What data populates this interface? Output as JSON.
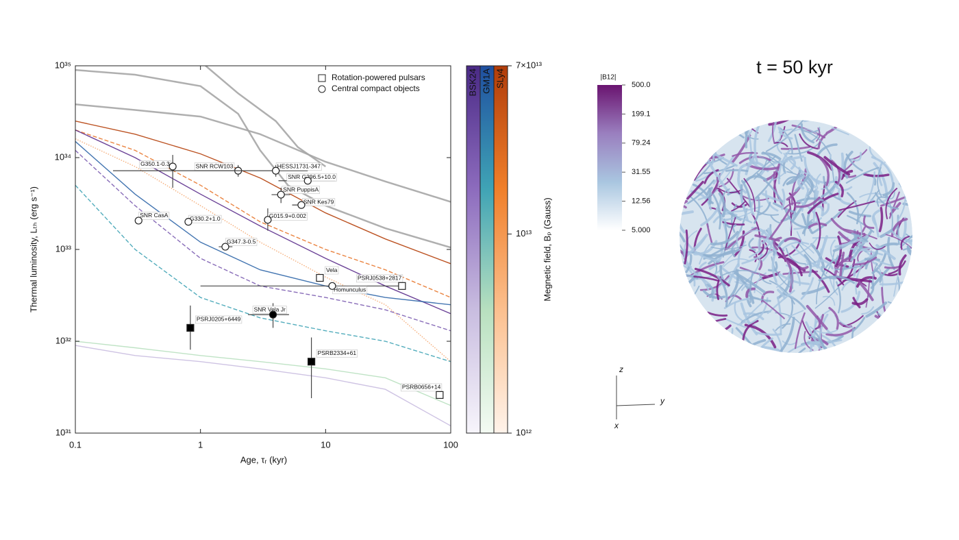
{
  "chart_data": {
    "type": "log-log-line",
    "xlabel": "Age, τᵣ (kyr)",
    "ylabel": "Thermal luminosity, Lₜₕ (erg s⁻¹)",
    "xlog": true,
    "ylog": true,
    "xlim": [
      0.1,
      100
    ],
    "ylim": [
      1e+31,
      1e+35
    ],
    "xticks": [
      0.1,
      1,
      10,
      100
    ],
    "yticks": [
      {
        "value": 1e+31,
        "label": "10³¹"
      },
      {
        "value": 1e+32,
        "label": "10³²"
      },
      {
        "value": 1e+33,
        "label": "10³³"
      },
      {
        "value": 1e+34,
        "label": "10³⁴"
      },
      {
        "value": 1e+35,
        "label": "10³⁵"
      }
    ],
    "legend": "upper right",
    "curves": [
      {
        "color": "#a6a6a6",
        "linestyle": "solid",
        "x": [
          0.1,
          0.3,
          1,
          2,
          3,
          5,
          10,
          30,
          100
        ],
        "values": [
          9e+34,
          8e+34,
          6e+34,
          3e+34,
          1.2e+34,
          5e+33,
          3e+33,
          1.7e+33,
          1.05e+33
        ]
      },
      {
        "color": "#a6a6a6",
        "linestyle": "solid",
        "x": [
          0.1,
          0.3,
          1,
          3,
          10,
          30,
          100
        ],
        "values": [
          3.8e+34,
          3.3e+34,
          2.8e+34,
          1.8e+34,
          9e+33,
          5.5e+33,
          3.3e+33
        ]
      },
      {
        "color": "#a6a6a6",
        "linestyle": "solid",
        "x": [
          1.1,
          2,
          4,
          6,
          10
        ],
        "values": [
          1e+35,
          5e+34,
          2.5e+34,
          1.3e+34,
          8e+33
        ]
      },
      {
        "color": "#b5400b",
        "linestyle": "solid",
        "x": [
          0.1,
          0.3,
          1,
          3,
          10,
          30,
          100
        ],
        "values": [
          2.5e+34,
          1.8e+34,
          1.1e+34,
          6e+33,
          2.5e+33,
          1.3e+33,
          7e+32
        ]
      },
      {
        "color": "#e8772c",
        "linestyle": "dashed",
        "x": [
          0.1,
          0.3,
          1,
          3,
          10,
          30,
          100
        ],
        "values": [
          2e+34,
          1.2e+34,
          5e+33,
          2e+33,
          1e+33,
          6e+32,
          3e+32
        ]
      },
      {
        "color": "#f5a56b",
        "linestyle": "dotted",
        "x": [
          0.1,
          0.3,
          1,
          3,
          10,
          30,
          100
        ],
        "values": [
          1.6e+34,
          8e+33,
          3e+33,
          1.2e+33,
          5e+32,
          2.5e+32,
          6e+31
        ]
      },
      {
        "color": "#5b2d8c",
        "linestyle": "solid",
        "x": [
          0.1,
          0.3,
          1,
          3,
          10,
          30,
          100
        ],
        "values": [
          2e+34,
          1e+34,
          4e+33,
          1.8e+33,
          8e+32,
          4e+32,
          2e+32
        ]
      },
      {
        "color": "#7b5cb0",
        "linestyle": "dashed",
        "x": [
          0.1,
          0.3,
          1,
          3,
          10,
          30,
          100
        ],
        "values": [
          1.2e+34,
          3e+33,
          8e+32,
          4e+32,
          3e+32,
          2.2e+32,
          1.3e+32
        ]
      },
      {
        "color": "#c9bde0",
        "linestyle": "solid",
        "x": [
          0.1,
          0.3,
          1,
          3,
          10,
          30,
          100
        ],
        "values": [
          9e+31,
          7e+31,
          6e+31,
          5e+31,
          4e+31,
          3e+31,
          1.2e+31
        ]
      },
      {
        "color": "#2f66a8",
        "linestyle": "solid",
        "x": [
          0.1,
          0.3,
          1,
          3,
          10,
          30,
          100
        ],
        "values": [
          1.5e+34,
          4e+33,
          1.2e+33,
          6e+32,
          4e+32,
          3e+32,
          2.5e+32
        ]
      },
      {
        "color": "#3fa3b5",
        "linestyle": "dashed",
        "x": [
          0.1,
          0.3,
          1,
          3,
          10,
          30,
          100
        ],
        "values": [
          5e+33,
          1e+33,
          3e+32,
          1.8e+32,
          1.3e+32,
          1e+32,
          6e+31
        ]
      },
      {
        "color": "#b8e0bf",
        "linestyle": "solid",
        "x": [
          0.1,
          0.3,
          1,
          3,
          10,
          30,
          100
        ],
        "values": [
          1e+32,
          8.5e+31,
          7e+31,
          6e+31,
          5e+31,
          4e+31,
          2e+31
        ]
      }
    ],
    "series": [
      {
        "name": "Rotation-powered pulsars",
        "marker": "square",
        "points": [
          {
            "label": "Vela",
            "x": 9,
            "y": 4.9e+32,
            "filled": false
          },
          {
            "label": "PSRJ0538+2817",
            "x": 40.8,
            "y": 4e+32,
            "filled": false,
            "xerr": [
              1,
              41
            ]
          },
          {
            "label": "PSRJ0205+6449",
            "x": 0.83,
            "y": 1.4e+32,
            "filled": true,
            "yerr": [
              8.1e+31,
              2.45e+32
            ]
          },
          {
            "label": "PSRB2334+61",
            "x": 7.7,
            "y": 6e+31,
            "filled": true,
            "yerr": [
              2.4e+31,
              1.1e+32
            ]
          },
          {
            "label": "PSRB0656+14",
            "x": 81.6,
            "y": 2.6e+31,
            "filled": false
          }
        ]
      },
      {
        "name": "Central compact objects",
        "marker": "circle",
        "points": [
          {
            "label": "G350.1-0.3",
            "x": 0.6,
            "y": 8e+33,
            "filled": false,
            "yerr": [
              4.7e+33,
              1.07e+34
            ]
          },
          {
            "label": "SNR RCW103",
            "x": 2,
            "y": 7.2e+33,
            "filled": false,
            "yerr": [
              6.2e+33,
              8.3e+33
            ]
          },
          {
            "label": "HESSJ1731-347",
            "x": 4,
            "y": 7.2e+33,
            "filled": false,
            "xerr": [
              0.2,
              7.2
            ],
            "yerr": [
              6.2e+33,
              8.3e+33
            ]
          },
          {
            "label": "SNR G296.5+10.0",
            "x": 7.2,
            "y": 5.6e+33,
            "filled": false,
            "xerr": [
              4.2,
              12
            ]
          },
          {
            "label": "SNR PuppisA",
            "x": 4.4,
            "y": 3.95e+33,
            "filled": false,
            "xerr": [
              3.7,
              5.2
            ],
            "yerr": [
              3.2e+33,
              4.7e+33
            ]
          },
          {
            "label": "SNR Kes79",
            "x": 6.4,
            "y": 3.05e+33,
            "filled": false,
            "xerr": [
              5.4,
              7.5
            ]
          },
          {
            "label": "SNR CasA",
            "x": 0.32,
            "y": 2.06e+33,
            "filled": false
          },
          {
            "label": "G330.2+1.0",
            "x": 0.8,
            "y": 2e+33,
            "filled": false
          },
          {
            "label": "G015.9+0.002",
            "x": 3.45,
            "y": 2.1e+33,
            "filled": false,
            "yerr": [
              1.6e+33,
              2.8e+33
            ]
          },
          {
            "label": "G347.3-0.5",
            "x": 1.58,
            "y": 1.07e+33,
            "filled": false,
            "xerr": [
              1.4,
              1.8
            ]
          },
          {
            "label": "Homunculus",
            "x": 11.3,
            "y": 4e+32,
            "filled": false
          },
          {
            "label": "SNR Vela Jr",
            "x": 3.8,
            "y": 1.95e+32,
            "filled": true,
            "xerr": [
              2.4,
              5.1
            ],
            "yerr": [
              1.4e+32,
              2.6e+32
            ]
          }
        ]
      }
    ],
    "colorbar": {
      "label": "Megnetic field, Bₚ (Gauss)",
      "log": true,
      "lim": [
        1000000000000.0,
        70000000000000.0
      ],
      "ticks": [
        {
          "value": 1000000000000.0,
          "label": "10¹²"
        },
        {
          "value": 10000000000000.0,
          "label": "10¹³"
        },
        {
          "value": 70000000000000.0,
          "label": "7×10¹³"
        }
      ],
      "columns": [
        {
          "name": "BSK24",
          "colors": [
            "#f7f5fb",
            "#c9bde0",
            "#8c6bbd",
            "#4a2a86"
          ]
        },
        {
          "name": "GM1A",
          "colors": [
            "#f4fbf3",
            "#b8e0bf",
            "#3fa3b5",
            "#1f4fa0"
          ]
        },
        {
          "name": "SLy4",
          "colors": [
            "#fff3ea",
            "#fbc08f",
            "#f07f2a",
            "#b03c0a"
          ]
        }
      ]
    }
  },
  "render_panel": {
    "title": "t = 50 kyr",
    "colorbar": {
      "title": "|B12|",
      "log": true,
      "lim": [
        5,
        500
      ],
      "ticks": [
        {
          "value": 500,
          "label": "500.0"
        },
        {
          "value": 199.1,
          "label": "199.1"
        },
        {
          "value": 79.24,
          "label": "79.24"
        },
        {
          "value": 31.55,
          "label": "31.55"
        },
        {
          "value": 12.56,
          "label": "12.56"
        },
        {
          "value": 5,
          "label": "5.000"
        }
      ],
      "colors": [
        "#ffffff",
        "#a9c6e0",
        "#9a7fbf",
        "#6a1470"
      ]
    },
    "axes": {
      "z": "z",
      "y": "y",
      "x": "x"
    }
  }
}
